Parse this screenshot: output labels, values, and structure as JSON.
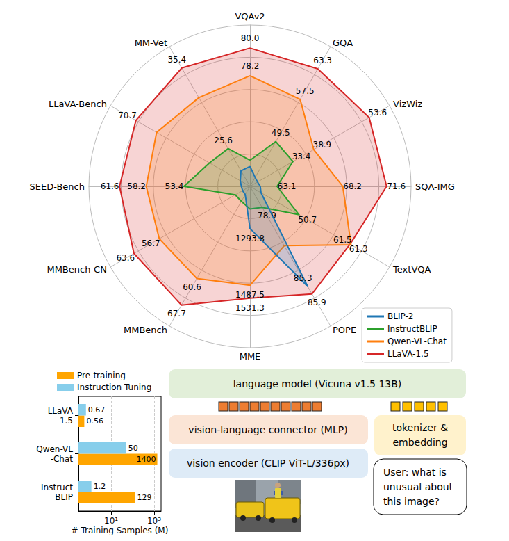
{
  "chart_data": [
    {
      "type": "radar",
      "indicators": [
        {
          "name": "VQAv2",
          "min": 71,
          "max": 81.5
        },
        {
          "name": "GQA",
          "min": 41,
          "max": 67.5
        },
        {
          "name": "VizWiz",
          "min": 22,
          "max": 59
        },
        {
          "name": "SQA-IMG",
          "min": 61,
          "max": 73.5
        },
        {
          "name": "TextVQA",
          "min": 40.5,
          "max": 69.5
        },
        {
          "name": "POPE",
          "min": 77.2,
          "max": 88.5
        },
        {
          "name": "MME",
          "min": 1150,
          "max": 1700
        },
        {
          "name": "MMBench",
          "min": 36,
          "max": 73.3
        },
        {
          "name": "MMBench-CN",
          "min": 32,
          "max": 70
        },
        {
          "name": "SEED-Bench",
          "min": 45,
          "max": 65.5
        },
        {
          "name": "LLaVA-Bench",
          "min": 20,
          "max": 82
        },
        {
          "name": "MM-Vet",
          "min": 21,
          "max": 38
        }
      ],
      "series": [
        {
          "name": "BLIP-2",
          "color": "#1f77b4",
          "values": [
            72.3,
            42.7,
            24,
            61.8,
            42.8,
            85.3,
            1293.8,
            38.2,
            34,
            46.1,
            24.3,
            22.9
          ],
          "value_labels": [
            null,
            null,
            null,
            null,
            null,
            "85.3",
            "1293.8",
            null,
            null,
            null,
            null,
            null
          ]
        },
        {
          "name": "InstructBLIP",
          "color": "#2ca02c",
          "values": [
            72.7,
            49.5,
            33.4,
            63.1,
            50.7,
            78.9,
            1227,
            40,
            36,
            53.4,
            38,
            25.6
          ],
          "value_labels": [
            null,
            "49.5",
            "33.4",
            "63.1",
            "50.7",
            "78.9",
            null,
            null,
            null,
            "53.4",
            null,
            "25.6"
          ]
        },
        {
          "name": "Qwen-VL-Chat",
          "color": "#ff7f0e",
          "values": [
            78.2,
            57.5,
            38.9,
            68.2,
            61.5,
            82.0,
            1487.5,
            60.6,
            56.7,
            58.2,
            61.5,
            31.8
          ],
          "value_labels": [
            "78.2",
            "57.5",
            "38.9",
            "68.2",
            "61.5",
            null,
            "1487.5",
            "60.6",
            "56.7",
            "58.2",
            null,
            null
          ]
        },
        {
          "name": "LLaVA-1.5",
          "color": "#d62728",
          "values": [
            80.0,
            63.3,
            53.6,
            71.6,
            61.3,
            85.9,
            1531.3,
            67.7,
            63.6,
            61.6,
            70.7,
            35.4
          ],
          "value_labels": [
            "80.0",
            "63.3",
            "53.6",
            "71.6",
            "61.3",
            "85.9",
            "1531.3",
            "67.7",
            "63.6",
            "61.6",
            "70.7",
            "35.4"
          ]
        }
      ],
      "legend": "lower right",
      "tick_labels": false,
      "grid": true
    },
    {
      "type": "bar",
      "orientation": "horizontal",
      "log": "x",
      "xlabel": "# Training Samples (M)",
      "categories": [
        "LLaVA\n-1.5",
        "Qwen-VL\n-Chat",
        "Instruct\nBLIP"
      ],
      "series": [
        {
          "name": "Pre-training",
          "color": "#ffa500",
          "values": [
            0.56,
            1400,
            129
          ]
        },
        {
          "name": "Instruction Tuning",
          "color": "#87ceeb",
          "values": [
            0.67,
            50,
            1.2
          ]
        }
      ],
      "xlim": [
        0.3,
        2100
      ],
      "xticks": [
        {
          "value": 10,
          "label": "10¹"
        },
        {
          "value": 1000,
          "label": "10³"
        }
      ],
      "grid": true,
      "data_labels": true,
      "legend": "upper left"
    }
  ],
  "diagram": {
    "language_model": "language model (Vicuna v1.5 13B)",
    "connector": "vision-language connector (MLP)",
    "vision_encoder": "vision encoder (CLIP ViT-L/336px)",
    "tokenizer": [
      "tokenizer &",
      "embedding"
    ],
    "user_prompt": [
      "User: what is",
      "unusual about",
      "this image?"
    ]
  }
}
